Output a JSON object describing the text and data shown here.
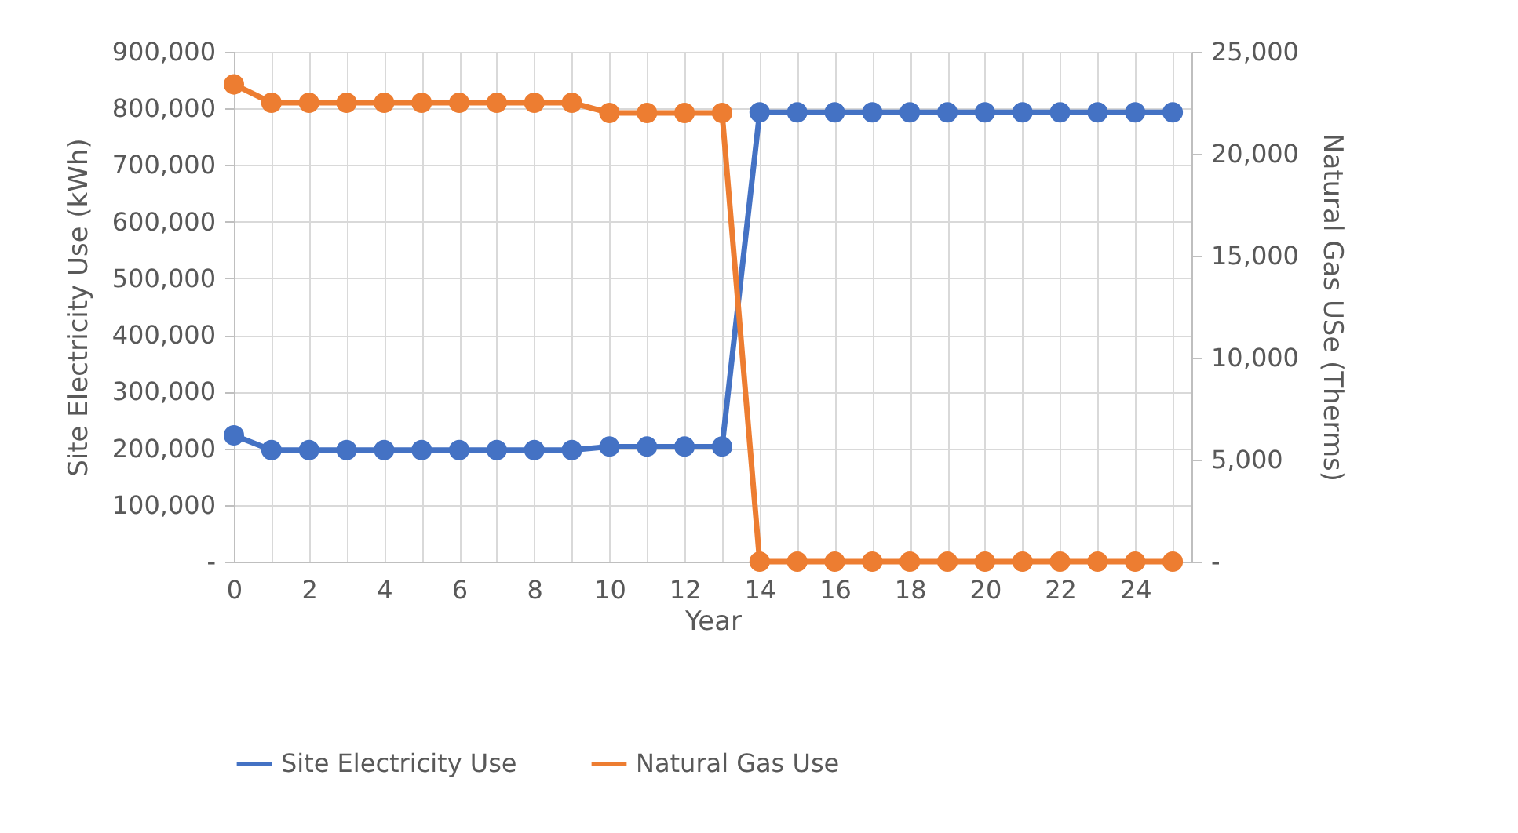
{
  "chart_data": {
    "type": "line",
    "xlabel": "Year",
    "ylabel": "Site Electricity Use (kWh)",
    "y2label": "Natural Gas USe (Therms)",
    "x": [
      0,
      1,
      2,
      3,
      4,
      5,
      6,
      7,
      8,
      9,
      10,
      11,
      12,
      13,
      14,
      15,
      16,
      17,
      18,
      19,
      20,
      21,
      22,
      23,
      24,
      25
    ],
    "series": [
      {
        "name": "Site Electricity Use",
        "color": "#4472c4",
        "values": [
          223000,
          197000,
          197000,
          197000,
          197000,
          197000,
          197000,
          197000,
          197000,
          197000,
          203000,
          203000,
          203000,
          203000,
          793000,
          793000,
          793000,
          793000,
          793000,
          793000,
          793000,
          793000,
          793000,
          793000,
          793000,
          793000
        ]
      },
      {
        "name": "Natural Gas Use",
        "color": "#ed7d31",
        "axis": "y2",
        "values": [
          23400,
          22500,
          22500,
          22500,
          22500,
          22500,
          22500,
          22500,
          22500,
          22500,
          22000,
          22000,
          22000,
          22000,
          0,
          0,
          0,
          0,
          0,
          0,
          0,
          0,
          0,
          0,
          0,
          0
        ]
      }
    ],
    "xlim": [
      0,
      25.5
    ],
    "xticks": [
      0,
      {
        "value": 1,
        "label": null
      },
      2,
      {
        "value": 3,
        "label": null
      },
      4,
      {
        "value": 5,
        "label": null
      },
      6,
      {
        "value": 7,
        "label": null
      },
      8,
      {
        "value": 9,
        "label": null
      },
      10,
      {
        "value": 11,
        "label": null
      },
      12,
      {
        "value": 13,
        "label": null
      },
      14,
      {
        "value": 15,
        "label": null
      },
      16,
      {
        "value": 17,
        "label": null
      },
      18,
      {
        "value": 19,
        "label": null
      },
      20,
      {
        "value": 21,
        "label": null
      },
      22,
      {
        "value": 23,
        "label": null
      },
      24,
      {
        "value": 25,
        "label": null
      }
    ],
    "ylim": [
      0,
      900000
    ],
    "yticks": [
      {
        "value": 0,
        "label": "-"
      },
      {
        "value": 100000,
        "label": "100,000"
      },
      {
        "value": 200000,
        "label": "200,000"
      },
      {
        "value": 300000,
        "label": "300,000"
      },
      {
        "value": 400000,
        "label": "400,000"
      },
      {
        "value": 500000,
        "label": "500,000"
      },
      {
        "value": 600000,
        "label": "600,000"
      },
      {
        "value": 700000,
        "label": "700,000"
      },
      {
        "value": 800000,
        "label": "800,000"
      },
      {
        "value": 900000,
        "label": "900,000"
      }
    ],
    "y2lim": [
      0,
      25000
    ],
    "y2ticks": [
      {
        "value": 0,
        "label": "-"
      },
      {
        "value": 5000,
        "label": "5,000"
      },
      {
        "value": 10000,
        "label": "10,000"
      },
      {
        "value": 15000,
        "label": "15,000"
      },
      {
        "value": 20000,
        "label": "20,000"
      },
      {
        "value": 25000,
        "label": "25,000"
      }
    ],
    "grid": true,
    "legend": "bottom",
    "marker": "circle",
    "line_style": "solid"
  }
}
